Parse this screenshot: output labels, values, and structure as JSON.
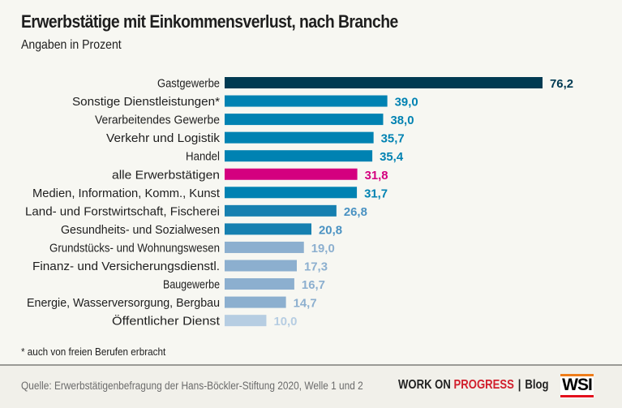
{
  "header": {
    "title": "Erwerbstätige mit Einkommensverlust, nach Branche",
    "subtitle": "Angaben in Prozent"
  },
  "chart_data": {
    "type": "bar",
    "orientation": "horizontal",
    "title": "Erwerbstätige mit Einkommensverlust, nach Branche",
    "subtitle": "Angaben in Prozent",
    "xlabel": "",
    "ylabel": "",
    "xlim": [
      0,
      76.2
    ],
    "grid": false,
    "legend": "none",
    "categories": [
      "Gastgewerbe",
      "Sonstige Dienstleistungen*",
      "Verarbeitendes Gewerbe",
      "Verkehr und Logistik",
      "Handel",
      "alle Erwerbstätigen",
      "Medien, Information, Komm., Kunst",
      "Land- und Forstwirtschaft, Fischerei",
      "Gesundheits- und Sozialwesen",
      "Grundstücks- und Wohnungswesen",
      "Finanz- und Versicherungsdienstl.",
      "Baugewerbe",
      "Energie, Wasserversorgung, Bergbau",
      "Öffentlicher Dienst"
    ],
    "values": [
      76.2,
      39.0,
      38.0,
      35.7,
      35.4,
      31.8,
      31.7,
      26.8,
      20.8,
      19.0,
      17.3,
      16.7,
      14.7,
      10.0
    ],
    "value_labels": [
      "76,2",
      "39,0",
      "38,0",
      "35,7",
      "35,4",
      "31,8",
      "31,7",
      "26,8",
      "20,8",
      "19,0",
      "17,3",
      "16,7",
      "14,7",
      "10,0"
    ],
    "bar_colors": [
      "#003a52",
      "#0082b2",
      "#0082b2",
      "#0082b2",
      "#0082b2",
      "#d4007f",
      "#0082b2",
      "#1680b0",
      "#1680b0",
      "#8cafcf",
      "#8cafcf",
      "#8cafcf",
      "#8cafcf",
      "#b6cde2"
    ],
    "label_colors": [
      "#003a52",
      "#0082b2",
      "#0082b2",
      "#0082b2",
      "#0082b2",
      "#d4007f",
      "#0082b2",
      "#4a92c2",
      "#4a92c2",
      "#8cafcf",
      "#8cafcf",
      "#8cafcf",
      "#8cafcf",
      "#b6cde2"
    ]
  },
  "footnote": "* auch von freien Berufen erbracht",
  "footer": {
    "source": "Quelle: Erwerbstätigenbefragung der Hans-Böckler-Stiftung 2020, Welle 1 und 2",
    "brand_part1": "WORK ON ",
    "brand_part2": "PROGRESS",
    "brand_separator": "|",
    "brand_blog": "Blog",
    "logo_text": "WSI"
  }
}
